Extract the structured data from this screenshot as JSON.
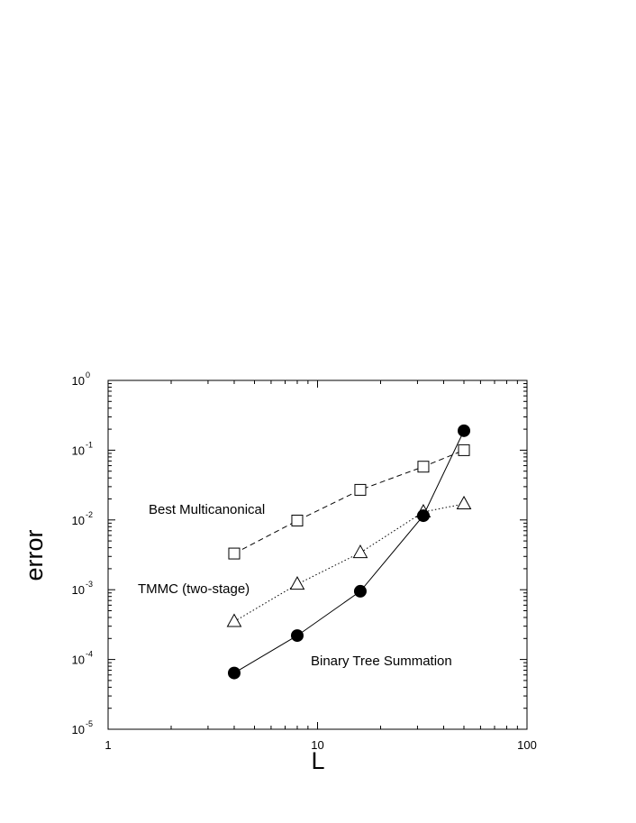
{
  "chart_data": {
    "type": "line",
    "xlabel": "L",
    "ylabel": "error",
    "x_scale": "log",
    "y_scale": "log",
    "xlim": [
      1,
      100
    ],
    "ylim": [
      1e-05,
      1
    ],
    "x_ticks": [
      {
        "value": 1,
        "label": "1"
      },
      {
        "value": 10,
        "label": "10"
      },
      {
        "value": 100,
        "label": "100"
      }
    ],
    "y_ticks": [
      {
        "value": 1,
        "base": "10",
        "exp": "0"
      },
      {
        "value": 0.1,
        "base": "10",
        "exp": "-1"
      },
      {
        "value": 0.01,
        "base": "10",
        "exp": "-2"
      },
      {
        "value": 0.001,
        "base": "10",
        "exp": "-3"
      },
      {
        "value": 0.0001,
        "base": "10",
        "exp": "-4"
      },
      {
        "value": 1e-05,
        "base": "10",
        "exp": "-5"
      }
    ],
    "grid": false,
    "series": [
      {
        "name": "Best Multicanonical",
        "marker": "open-square",
        "line_style": "dashed",
        "x": [
          4,
          8,
          16,
          32,
          50
        ],
        "y": [
          0.0033,
          0.0098,
          0.027,
          0.058,
          0.1
        ]
      },
      {
        "name": "TMMC (two-stage)",
        "marker": "open-triangle",
        "line_style": "dotted",
        "x": [
          4,
          8,
          16,
          32,
          50
        ],
        "y": [
          0.00035,
          0.0012,
          0.0034,
          0.013,
          0.017
        ]
      },
      {
        "name": "Binary Tree Summation",
        "marker": "filled-circle",
        "line_style": "solid",
        "x": [
          4,
          8,
          16,
          32,
          50
        ],
        "y": [
          6.4e-05,
          0.00022,
          0.00095,
          0.0115,
          0.19
        ]
      }
    ]
  }
}
